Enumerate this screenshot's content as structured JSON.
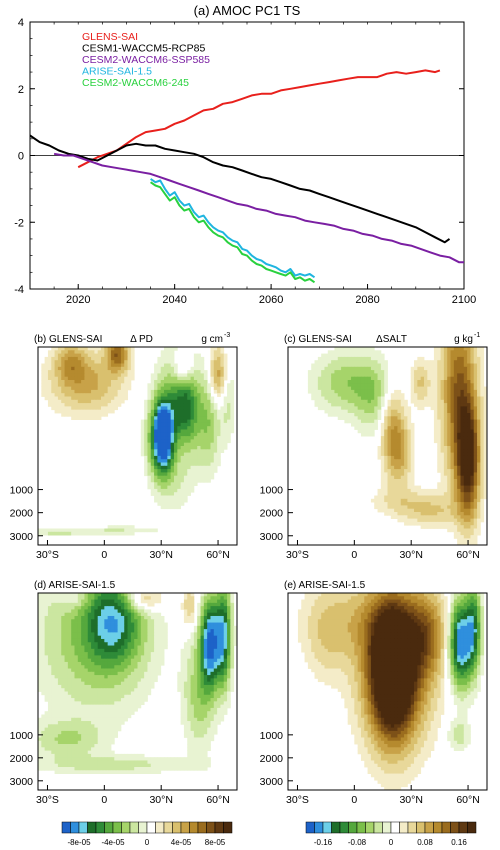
{
  "chart_data": [
    {
      "type": "line",
      "title": "(a) AMOC PC1 TS",
      "xlim": [
        2010,
        2100
      ],
      "ylim": [
        -4,
        4
      ],
      "xticks": [
        "2020",
        "2040",
        "2060",
        "2080",
        "2100"
      ],
      "yticks": [
        "-4",
        "-2",
        "0",
        "2",
        "4"
      ],
      "legend": "top-left",
      "series": [
        {
          "name": "GLENS-SAI",
          "color": "#e8201c",
          "x": [
            2020,
            2022,
            2024,
            2026,
            2028,
            2030,
            2032,
            2034,
            2036,
            2038,
            2040,
            2042,
            2044,
            2046,
            2048,
            2050,
            2052,
            2054,
            2056,
            2058,
            2060,
            2062,
            2064,
            2066,
            2068,
            2070,
            2072,
            2074,
            2076,
            2078,
            2080,
            2082,
            2084,
            2086,
            2088,
            2090,
            2092,
            2094,
            2095
          ],
          "y": [
            -0.35,
            -0.2,
            -0.05,
            0.05,
            0.15,
            0.35,
            0.55,
            0.7,
            0.75,
            0.8,
            0.95,
            1.05,
            1.2,
            1.35,
            1.4,
            1.55,
            1.6,
            1.7,
            1.8,
            1.85,
            1.85,
            1.95,
            2.0,
            2.05,
            2.1,
            2.15,
            2.2,
            2.25,
            2.3,
            2.35,
            2.35,
            2.35,
            2.45,
            2.5,
            2.45,
            2.5,
            2.55,
            2.5,
            2.55
          ]
        },
        {
          "name": "CESM1-WACCM5-RCP85",
          "color": "#000000",
          "x": [
            2010,
            2012,
            2014,
            2016,
            2018,
            2020,
            2022,
            2024,
            2026,
            2028,
            2030,
            2032,
            2034,
            2036,
            2038,
            2040,
            2042,
            2044,
            2046,
            2048,
            2050,
            2052,
            2054,
            2056,
            2058,
            2060,
            2062,
            2064,
            2066,
            2068,
            2070,
            2072,
            2074,
            2076,
            2078,
            2080,
            2082,
            2084,
            2086,
            2088,
            2090,
            2092,
            2094,
            2096,
            2097
          ],
          "y": [
            0.6,
            0.4,
            0.3,
            0.15,
            0.05,
            0.0,
            -0.1,
            -0.15,
            0.0,
            0.15,
            0.3,
            0.35,
            0.3,
            0.3,
            0.2,
            0.15,
            0.1,
            0.05,
            -0.05,
            -0.2,
            -0.3,
            -0.35,
            -0.45,
            -0.55,
            -0.65,
            -0.7,
            -0.8,
            -0.9,
            -1.0,
            -1.05,
            -1.15,
            -1.25,
            -1.35,
            -1.45,
            -1.55,
            -1.65,
            -1.75,
            -1.85,
            -1.95,
            -2.05,
            -2.15,
            -2.3,
            -2.45,
            -2.6,
            -2.5
          ]
        },
        {
          "name": "CESM2-WACCM6-SSP585",
          "color": "#7a1fa2",
          "x": [
            2015,
            2017,
            2019,
            2021,
            2023,
            2025,
            2027,
            2029,
            2031,
            2033,
            2035,
            2037,
            2039,
            2041,
            2043,
            2045,
            2047,
            2049,
            2051,
            2053,
            2055,
            2057,
            2059,
            2061,
            2063,
            2065,
            2067,
            2069,
            2071,
            2073,
            2075,
            2077,
            2079,
            2081,
            2083,
            2085,
            2087,
            2089,
            2091,
            2093,
            2095,
            2097,
            2099,
            2100
          ],
          "y": [
            0.05,
            0.0,
            0.0,
            -0.1,
            -0.2,
            -0.3,
            -0.35,
            -0.4,
            -0.45,
            -0.5,
            -0.55,
            -0.65,
            -0.75,
            -0.85,
            -0.95,
            -1.05,
            -1.15,
            -1.25,
            -1.35,
            -1.45,
            -1.5,
            -1.6,
            -1.65,
            -1.75,
            -1.8,
            -1.85,
            -1.95,
            -2.0,
            -2.05,
            -2.1,
            -2.2,
            -2.25,
            -2.35,
            -2.4,
            -2.5,
            -2.55,
            -2.65,
            -2.7,
            -2.8,
            -2.9,
            -3.0,
            -3.05,
            -3.2,
            -3.2
          ]
        },
        {
          "name": "ARISE-SAI-1.5",
          "color": "#1fb5e0",
          "x": [
            2035,
            2036,
            2037,
            2038,
            2039,
            2040,
            2041,
            2042,
            2043,
            2044,
            2045,
            2046,
            2047,
            2048,
            2049,
            2050,
            2051,
            2052,
            2053,
            2054,
            2055,
            2056,
            2057,
            2058,
            2059,
            2060,
            2061,
            2062,
            2063,
            2064,
            2065,
            2066,
            2067,
            2068,
            2069
          ],
          "y": [
            -0.7,
            -0.8,
            -0.75,
            -1.0,
            -1.2,
            -1.1,
            -1.35,
            -1.5,
            -1.45,
            -1.7,
            -1.85,
            -1.8,
            -2.0,
            -2.15,
            -2.25,
            -2.3,
            -2.45,
            -2.55,
            -2.6,
            -2.8,
            -2.85,
            -3.0,
            -3.1,
            -3.15,
            -3.25,
            -3.3,
            -3.35,
            -3.45,
            -3.5,
            -3.4,
            -3.6,
            -3.55,
            -3.6,
            -3.55,
            -3.65
          ]
        },
        {
          "name": "CESM2-WACCM6-245",
          "color": "#29d13e",
          "x": [
            2035,
            2036,
            2037,
            2038,
            2039,
            2040,
            2041,
            2042,
            2043,
            2044,
            2045,
            2046,
            2047,
            2048,
            2049,
            2050,
            2051,
            2052,
            2053,
            2054,
            2055,
            2056,
            2057,
            2058,
            2059,
            2060,
            2061,
            2062,
            2063,
            2064,
            2065,
            2066,
            2067,
            2068,
            2069
          ],
          "y": [
            -0.8,
            -0.9,
            -0.95,
            -1.15,
            -1.35,
            -1.25,
            -1.5,
            -1.65,
            -1.6,
            -1.85,
            -2.0,
            -1.95,
            -2.15,
            -2.3,
            -2.4,
            -2.45,
            -2.6,
            -2.7,
            -2.75,
            -2.95,
            -3.0,
            -3.15,
            -3.25,
            -3.3,
            -3.4,
            -3.45,
            -3.5,
            -3.55,
            -3.6,
            -3.5,
            -3.7,
            -3.65,
            -3.75,
            -3.7,
            -3.8
          ]
        }
      ]
    },
    {
      "type": "heatmap",
      "panel": "b",
      "title": "(b) GLENS-SAI",
      "variable": "Δ PD",
      "units": "g cm",
      "units_exp": "-3",
      "xticks": [
        "30°S",
        "0",
        "30°N",
        "60°N"
      ],
      "yticks": [
        "1000",
        "2000",
        "3000"
      ],
      "blobs": [
        {
          "lat": 37,
          "depth": 550,
          "rlat": 10,
          "rdepth": 400,
          "value": -9e-05
        },
        {
          "lat": 30,
          "depth": 650,
          "rlat": 6,
          "rdepth": 250,
          "value": -0.00012
        },
        {
          "lat": 31,
          "depth": 600,
          "rlat": 3,
          "rdepth": 150,
          "value": -0.00015
        },
        {
          "lat": 44,
          "depth": 400,
          "rlat": 6,
          "rdepth": 300,
          "value": -6e-05
        },
        {
          "lat": 55,
          "depth": 500,
          "rlat": 6,
          "rdepth": 350,
          "value": -5e-05
        },
        {
          "lat": 65,
          "depth": 350,
          "rlat": 4,
          "rdepth": 300,
          "value": -3e-05
        },
        {
          "lat": -10,
          "depth": 250,
          "rlat": 18,
          "rdepth": 200,
          "value": 6e-05
        },
        {
          "lat": 7,
          "depth": 50,
          "rlat": 6,
          "rdepth": 120,
          "value": 9e-05
        },
        {
          "lat": -18,
          "depth": 100,
          "rlat": 8,
          "rdepth": 130,
          "value": 5e-05
        },
        {
          "lat": 40,
          "depth": 700,
          "rlat": 6,
          "rdepth": 200,
          "value": 4e-05
        },
        {
          "lat": 60,
          "depth": 200,
          "rlat": 5,
          "rdepth": 200,
          "value": 7e-05
        },
        {
          "lat": 42,
          "depth": 150,
          "rlat": 5,
          "rdepth": 120,
          "value": 6e-05
        },
        {
          "lat": -25,
          "depth": 2850,
          "rlat": 25,
          "rdepth": 180,
          "value": -2.5e-05
        },
        {
          "lat": 10,
          "depth": 2750,
          "rlat": 20,
          "rdepth": 160,
          "value": -2e-05
        }
      ]
    },
    {
      "type": "heatmap",
      "panel": "c",
      "title": "(c) GLENS-SAI",
      "variable": "ΔSALT",
      "units": "g kg",
      "units_exp": "-1",
      "xticks": [
        "30°S",
        "0",
        "30°N",
        "60°N"
      ],
      "yticks": [
        "1000",
        "2000",
        "3000"
      ],
      "blobs": [
        {
          "lat": 60,
          "depth": 800,
          "rlat": 6,
          "rdepth": 1400,
          "value": 0.17
        },
        {
          "lat": 55,
          "depth": 300,
          "rlat": 9,
          "rdepth": 600,
          "value": 0.12
        },
        {
          "lat": 20,
          "depth": 600,
          "rlat": 6,
          "rdepth": 300,
          "value": 0.08
        },
        {
          "lat": 25,
          "depth": 750,
          "rlat": 6,
          "rdepth": 250,
          "value": 0.05
        },
        {
          "lat": -5,
          "depth": 250,
          "rlat": 16,
          "rdepth": 200,
          "value": -0.06
        },
        {
          "lat": 10,
          "depth": 350,
          "rlat": 10,
          "rdepth": 250,
          "value": -0.05
        },
        {
          "lat": 35,
          "depth": 250,
          "rlat": 5,
          "rdepth": 150,
          "value": 0.05
        },
        {
          "lat": 28,
          "depth": 1500,
          "rlat": 20,
          "rdepth": 600,
          "value": 0.03
        },
        {
          "lat": 40,
          "depth": 2000,
          "rlat": 15,
          "rdepth": 600,
          "value": 0.04
        }
      ]
    },
    {
      "type": "heatmap",
      "panel": "d",
      "title": "(d) ARISE-SAI-1.5",
      "xticks": [
        "30°S",
        "0",
        "30°N",
        "60°N"
      ],
      "yticks": [
        "1000",
        "2000",
        "3000"
      ],
      "colorbar_labels": [
        "-8e-05",
        "-4e-05",
        "0",
        "4e-05",
        "8e-05"
      ],
      "blobs": [
        {
          "lat": -5,
          "depth": 300,
          "rlat": 28,
          "rdepth": 500,
          "value": -6e-05
        },
        {
          "lat": 5,
          "depth": 200,
          "rlat": 14,
          "rdepth": 300,
          "value": -9e-05
        },
        {
          "lat": -20,
          "depth": 1200,
          "rlat": 18,
          "rdepth": 800,
          "value": -4e-05
        },
        {
          "lat": 50,
          "depth": 700,
          "rlat": 8,
          "rdepth": 800,
          "value": -5e-05
        },
        {
          "lat": 56,
          "depth": 350,
          "rlat": 5,
          "rdepth": 300,
          "value": -0.00016
        },
        {
          "lat": 63,
          "depth": 300,
          "rlat": 4,
          "rdepth": 350,
          "value": -0.00012
        },
        {
          "lat": 20,
          "depth": 40,
          "rlat": 10,
          "rdepth": 90,
          "value": 6e-05
        },
        {
          "lat": -15,
          "depth": 40,
          "rlat": 8,
          "rdepth": 80,
          "value": 3e-05
        },
        {
          "lat": 45,
          "depth": 100,
          "rlat": 4,
          "rdepth": 150,
          "value": 4e-05
        },
        {
          "lat": 5,
          "depth": 2300,
          "rlat": 40,
          "rdepth": 400,
          "value": -3e-05
        }
      ]
    },
    {
      "type": "heatmap",
      "panel": "e",
      "title": "(e) ARISE-SAI-1.5",
      "xticks": [
        "30°S",
        "0",
        "30°N",
        "60°N"
      ],
      "yticks": [
        "1000",
        "2000",
        "3000"
      ],
      "colorbar_labels": [
        "-0.16",
        "-0.08",
        "0",
        "0.08",
        "0.16"
      ],
      "blobs": [
        {
          "lat": 22,
          "depth": 600,
          "rlat": 18,
          "rdepth": 800,
          "value": 0.12
        },
        {
          "lat": 20,
          "depth": 550,
          "rlat": 11,
          "rdepth": 500,
          "value": 0.19
        },
        {
          "lat": 10,
          "depth": 200,
          "rlat": 30,
          "rdepth": 300,
          "value": 0.06
        },
        {
          "lat": 38,
          "depth": 300,
          "rlat": 10,
          "rdepth": 300,
          "value": 0.08
        },
        {
          "lat": 56,
          "depth": 350,
          "rlat": 6,
          "rdepth": 300,
          "value": -0.19
        },
        {
          "lat": 63,
          "depth": 250,
          "rlat": 4,
          "rdepth": 300,
          "value": -0.12
        },
        {
          "lat": 55,
          "depth": 1000,
          "rlat": 6,
          "rdepth": 700,
          "value": -0.04
        },
        {
          "lat": -15,
          "depth": 300,
          "rlat": 10,
          "rdepth": 300,
          "value": 0.03
        }
      ]
    }
  ]
}
